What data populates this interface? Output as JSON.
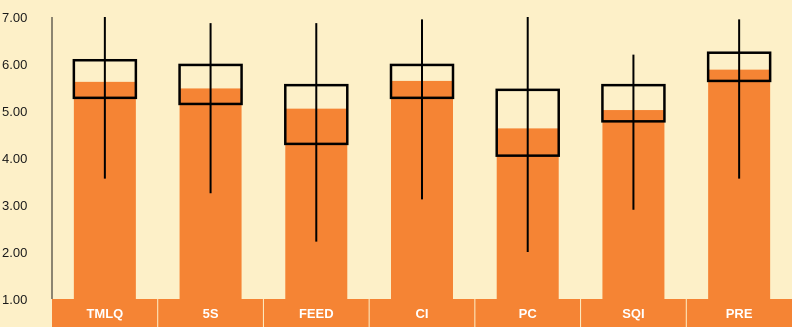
{
  "chart_data": {
    "type": "bar",
    "title": "",
    "xlabel": "",
    "ylabel": "",
    "ylim": [
      1.0,
      7.0
    ],
    "y_ticks": [
      "1.00",
      "2.00",
      "3.00",
      "4.00",
      "5.00",
      "6.00",
      "7.00"
    ],
    "categories": [
      "TMLQ",
      "5S",
      "FEED",
      "CI",
      "PC",
      "SQI",
      "PRE"
    ],
    "series": [
      {
        "values": [
          5.62,
          5.48,
          5.05,
          5.64,
          4.63,
          5.02,
          5.88
        ]
      }
    ],
    "box_low": [
      5.28,
      5.15,
      4.3,
      5.28,
      4.05,
      4.78,
      5.64
    ],
    "box_high": [
      6.08,
      5.98,
      5.55,
      5.98,
      5.45,
      5.55,
      6.24
    ],
    "whisker_min": [
      3.56,
      3.25,
      2.22,
      3.12,
      2.0,
      2.9,
      3.56
    ],
    "whisker_max": [
      7.0,
      6.87,
      6.87,
      6.95,
      7.0,
      6.2,
      6.95
    ],
    "colors": {
      "bar": "#f58434",
      "background": "#fdf0c8",
      "box": "#000000",
      "category_band": "#f58434"
    }
  }
}
